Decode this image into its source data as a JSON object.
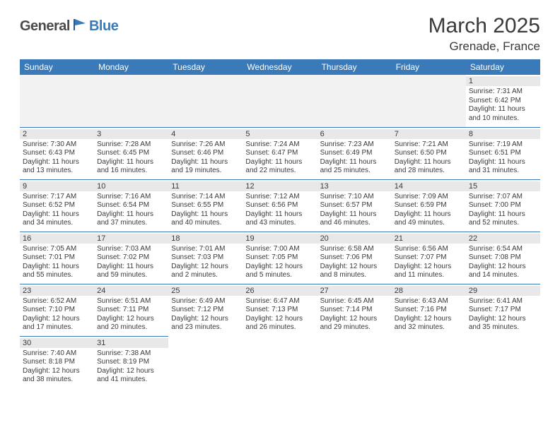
{
  "logo": {
    "part1": "General",
    "part2": "Blue"
  },
  "title": "March 2025",
  "location": "Grenade, France",
  "header_bg": "#3a7ab8",
  "daynum_bg": "#e8e8e8",
  "border_color": "#3a7ab8",
  "weekdays": [
    "Sunday",
    "Monday",
    "Tuesday",
    "Wednesday",
    "Thursday",
    "Friday",
    "Saturday"
  ],
  "days": [
    null,
    null,
    null,
    null,
    null,
    null,
    {
      "n": "1",
      "sr": "7:31 AM",
      "ss": "6:42 PM",
      "dl": "11 hours and 10 minutes."
    },
    {
      "n": "2",
      "sr": "7:30 AM",
      "ss": "6:43 PM",
      "dl": "11 hours and 13 minutes."
    },
    {
      "n": "3",
      "sr": "7:28 AM",
      "ss": "6:45 PM",
      "dl": "11 hours and 16 minutes."
    },
    {
      "n": "4",
      "sr": "7:26 AM",
      "ss": "6:46 PM",
      "dl": "11 hours and 19 minutes."
    },
    {
      "n": "5",
      "sr": "7:24 AM",
      "ss": "6:47 PM",
      "dl": "11 hours and 22 minutes."
    },
    {
      "n": "6",
      "sr": "7:23 AM",
      "ss": "6:49 PM",
      "dl": "11 hours and 25 minutes."
    },
    {
      "n": "7",
      "sr": "7:21 AM",
      "ss": "6:50 PM",
      "dl": "11 hours and 28 minutes."
    },
    {
      "n": "8",
      "sr": "7:19 AM",
      "ss": "6:51 PM",
      "dl": "11 hours and 31 minutes."
    },
    {
      "n": "9",
      "sr": "7:17 AM",
      "ss": "6:52 PM",
      "dl": "11 hours and 34 minutes."
    },
    {
      "n": "10",
      "sr": "7:16 AM",
      "ss": "6:54 PM",
      "dl": "11 hours and 37 minutes."
    },
    {
      "n": "11",
      "sr": "7:14 AM",
      "ss": "6:55 PM",
      "dl": "11 hours and 40 minutes."
    },
    {
      "n": "12",
      "sr": "7:12 AM",
      "ss": "6:56 PM",
      "dl": "11 hours and 43 minutes."
    },
    {
      "n": "13",
      "sr": "7:10 AM",
      "ss": "6:57 PM",
      "dl": "11 hours and 46 minutes."
    },
    {
      "n": "14",
      "sr": "7:09 AM",
      "ss": "6:59 PM",
      "dl": "11 hours and 49 minutes."
    },
    {
      "n": "15",
      "sr": "7:07 AM",
      "ss": "7:00 PM",
      "dl": "11 hours and 52 minutes."
    },
    {
      "n": "16",
      "sr": "7:05 AM",
      "ss": "7:01 PM",
      "dl": "11 hours and 55 minutes."
    },
    {
      "n": "17",
      "sr": "7:03 AM",
      "ss": "7:02 PM",
      "dl": "11 hours and 59 minutes."
    },
    {
      "n": "18",
      "sr": "7:01 AM",
      "ss": "7:03 PM",
      "dl": "12 hours and 2 minutes."
    },
    {
      "n": "19",
      "sr": "7:00 AM",
      "ss": "7:05 PM",
      "dl": "12 hours and 5 minutes."
    },
    {
      "n": "20",
      "sr": "6:58 AM",
      "ss": "7:06 PM",
      "dl": "12 hours and 8 minutes."
    },
    {
      "n": "21",
      "sr": "6:56 AM",
      "ss": "7:07 PM",
      "dl": "12 hours and 11 minutes."
    },
    {
      "n": "22",
      "sr": "6:54 AM",
      "ss": "7:08 PM",
      "dl": "12 hours and 14 minutes."
    },
    {
      "n": "23",
      "sr": "6:52 AM",
      "ss": "7:10 PM",
      "dl": "12 hours and 17 minutes."
    },
    {
      "n": "24",
      "sr": "6:51 AM",
      "ss": "7:11 PM",
      "dl": "12 hours and 20 minutes."
    },
    {
      "n": "25",
      "sr": "6:49 AM",
      "ss": "7:12 PM",
      "dl": "12 hours and 23 minutes."
    },
    {
      "n": "26",
      "sr": "6:47 AM",
      "ss": "7:13 PM",
      "dl": "12 hours and 26 minutes."
    },
    {
      "n": "27",
      "sr": "6:45 AM",
      "ss": "7:14 PM",
      "dl": "12 hours and 29 minutes."
    },
    {
      "n": "28",
      "sr": "6:43 AM",
      "ss": "7:16 PM",
      "dl": "12 hours and 32 minutes."
    },
    {
      "n": "29",
      "sr": "6:41 AM",
      "ss": "7:17 PM",
      "dl": "12 hours and 35 minutes."
    },
    {
      "n": "30",
      "sr": "7:40 AM",
      "ss": "8:18 PM",
      "dl": "12 hours and 38 minutes."
    },
    {
      "n": "31",
      "sr": "7:38 AM",
      "ss": "8:19 PM",
      "dl": "12 hours and 41 minutes."
    },
    null,
    null,
    null,
    null,
    null
  ],
  "labels": {
    "sunrise": "Sunrise: ",
    "sunset": "Sunset: ",
    "daylight": "Daylight: "
  }
}
